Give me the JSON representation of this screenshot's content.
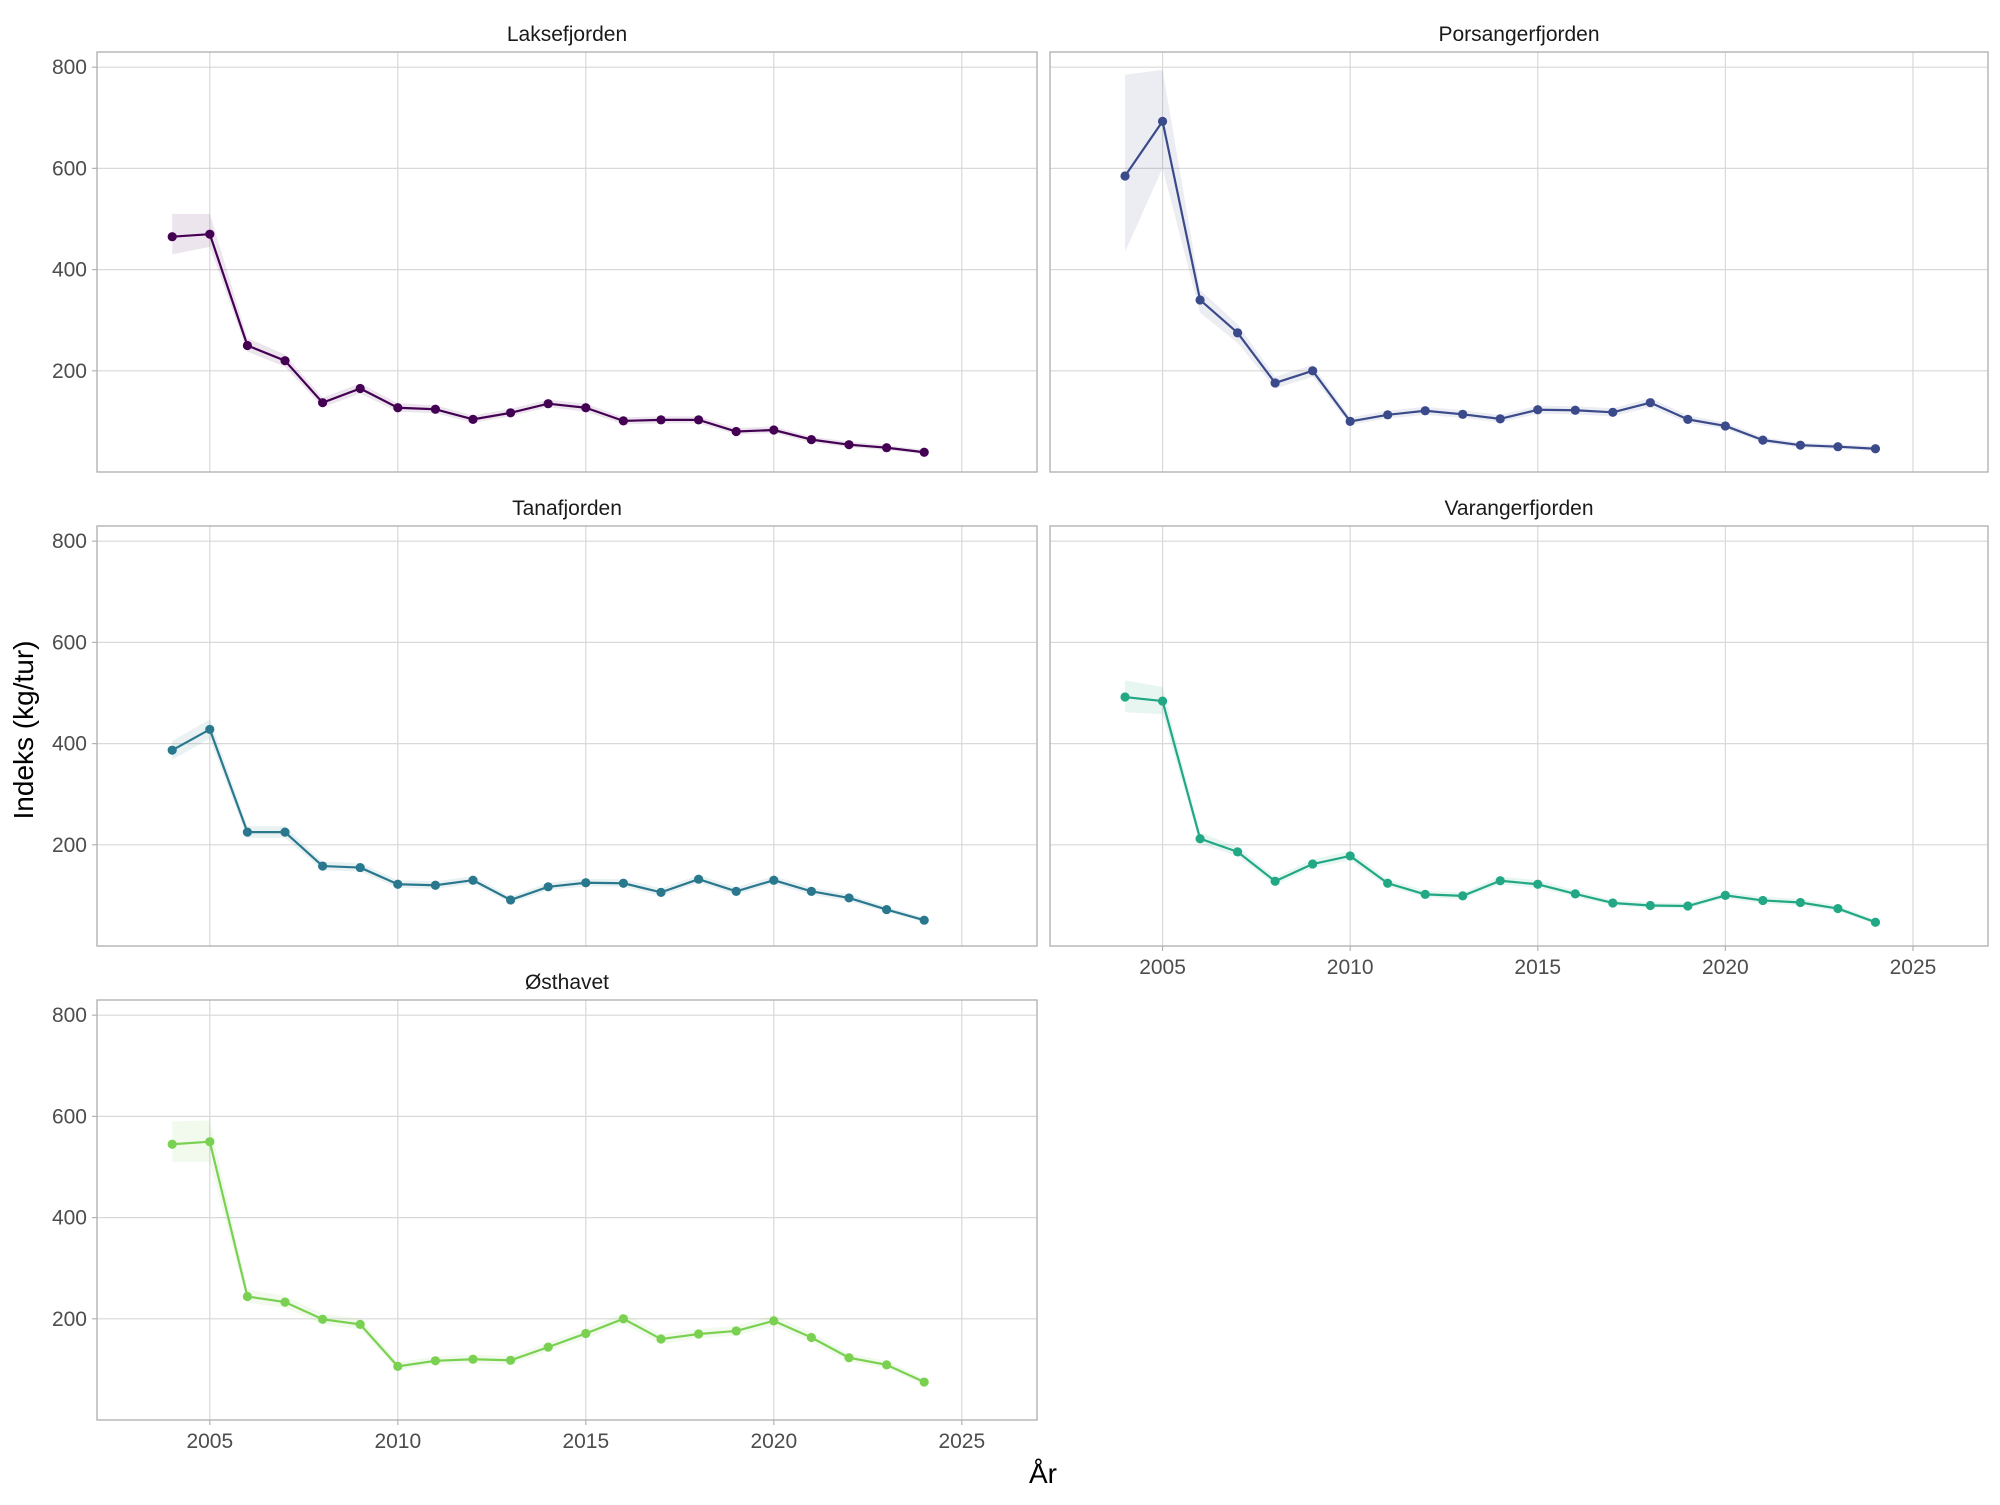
{
  "chart_data": {
    "type": "line",
    "xlabel": "År",
    "ylabel": "Indeks (kg/tur)",
    "xlim": [
      2002,
      2027
    ],
    "ylim": [
      0,
      830
    ],
    "x_ticks": [
      2005,
      2010,
      2015,
      2020,
      2025
    ],
    "y_ticks": [
      200,
      400,
      600,
      800
    ],
    "grid": true,
    "panels": [
      {
        "title": "Laksefjorden",
        "color": "#440154",
        "x": [
          2004,
          2005,
          2006,
          2007,
          2008,
          2009,
          2010,
          2011,
          2012,
          2013,
          2014,
          2015,
          2016,
          2017,
          2018,
          2019,
          2020,
          2021,
          2022,
          2023,
          2024
        ],
        "values": [
          465,
          470,
          250,
          220,
          137,
          165,
          127,
          124,
          104,
          117,
          135,
          127,
          101,
          103,
          103,
          80,
          83,
          64,
          54,
          48,
          39
        ],
        "lower": [
          430,
          445,
          238,
          208,
          128,
          155,
          119,
          116,
          97,
          110,
          128,
          119,
          94,
          96,
          96,
          74,
          77,
          58,
          49,
          43,
          35
        ],
        "upper": [
          510,
          510,
          265,
          232,
          147,
          175,
          136,
          132,
          112,
          125,
          143,
          135,
          108,
          110,
          110,
          87,
          90,
          70,
          60,
          53,
          44
        ]
      },
      {
        "title": "Porsangerfjorden",
        "color": "#3b4a8a",
        "x": [
          2004,
          2005,
          2006,
          2007,
          2008,
          2009,
          2010,
          2011,
          2012,
          2013,
          2014,
          2015,
          2016,
          2017,
          2018,
          2019,
          2020,
          2021,
          2022,
          2023,
          2024
        ],
        "values": [
          585,
          693,
          340,
          275,
          176,
          200,
          100,
          113,
          121,
          114,
          105,
          123,
          122,
          118,
          137,
          104,
          91,
          63,
          53,
          50,
          46
        ],
        "lower": [
          435,
          600,
          315,
          255,
          165,
          188,
          93,
          106,
          113,
          107,
          98,
          115,
          114,
          110,
          128,
          97,
          85,
          58,
          48,
          45,
          42
        ],
        "upper": [
          785,
          795,
          360,
          292,
          188,
          212,
          108,
          121,
          129,
          122,
          113,
          131,
          130,
          126,
          146,
          112,
          98,
          69,
          58,
          55,
          51
        ]
      },
      {
        "title": "Tanafjorden",
        "color": "#2a788e",
        "x": [
          2004,
          2005,
          2006,
          2007,
          2008,
          2009,
          2010,
          2011,
          2012,
          2013,
          2014,
          2015,
          2016,
          2017,
          2018,
          2019,
          2020,
          2021,
          2022,
          2023,
          2024
        ],
        "values": [
          387,
          428,
          225,
          225,
          158,
          155,
          122,
          120,
          130,
          91,
          117,
          125,
          124,
          106,
          132,
          108,
          130,
          108,
          95,
          72,
          51
        ],
        "lower": [
          368,
          410,
          214,
          214,
          150,
          147,
          115,
          113,
          123,
          85,
          110,
          118,
          117,
          99,
          125,
          101,
          123,
          101,
          89,
          67,
          47
        ],
        "upper": [
          405,
          448,
          237,
          237,
          167,
          164,
          130,
          128,
          138,
          98,
          125,
          133,
          132,
          114,
          140,
          116,
          138,
          116,
          102,
          78,
          56
        ]
      },
      {
        "title": "Varangerfjorden",
        "color": "#22a884",
        "x": [
          2004,
          2005,
          2006,
          2007,
          2008,
          2009,
          2010,
          2011,
          2012,
          2013,
          2014,
          2015,
          2016,
          2017,
          2018,
          2019,
          2020,
          2021,
          2022,
          2023,
          2024
        ],
        "values": [
          492,
          484,
          212,
          186,
          128,
          162,
          178,
          124,
          102,
          99,
          129,
          122,
          103,
          85,
          80,
          79,
          100,
          90,
          86,
          74,
          47
        ],
        "lower": [
          462,
          458,
          202,
          177,
          121,
          154,
          169,
          117,
          96,
          93,
          122,
          115,
          97,
          80,
          75,
          74,
          94,
          84,
          80,
          69,
          43
        ],
        "upper": [
          525,
          512,
          224,
          196,
          136,
          171,
          188,
          132,
          109,
          106,
          137,
          130,
          110,
          91,
          86,
          85,
          107,
          97,
          93,
          80,
          52
        ]
      },
      {
        "title": "Østhavet",
        "color": "#7ad151",
        "x": [
          2004,
          2005,
          2006,
          2007,
          2008,
          2009,
          2010,
          2011,
          2012,
          2013,
          2014,
          2015,
          2016,
          2017,
          2018,
          2019,
          2020,
          2021,
          2022,
          2023,
          2024
        ],
        "values": [
          545,
          550,
          244,
          233,
          199,
          189,
          106,
          117,
          120,
          118,
          144,
          171,
          200,
          160,
          170,
          176,
          196,
          163,
          123,
          109,
          75
        ],
        "lower": [
          510,
          510,
          232,
          222,
          189,
          179,
          99,
          110,
          112,
          110,
          136,
          162,
          190,
          151,
          161,
          167,
          186,
          154,
          115,
          102,
          69
        ],
        "upper": [
          590,
          592,
          258,
          245,
          210,
          200,
          114,
          126,
          129,
          127,
          153,
          181,
          211,
          170,
          180,
          186,
          207,
          173,
          131,
          117,
          82
        ]
      }
    ]
  }
}
